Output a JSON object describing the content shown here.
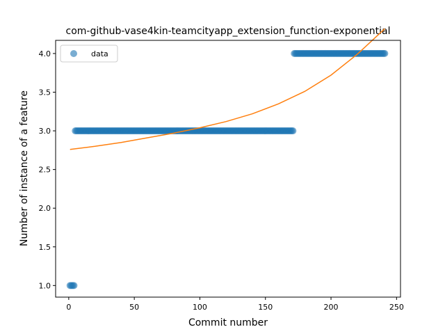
{
  "chart_data": {
    "type": "scatter",
    "title": "com-github-vase4kin-teamcityapp_extension_function-exponential",
    "xlabel": "Commit number",
    "ylabel": "Number of instance of a feature",
    "xlim": [
      -10,
      253
    ],
    "ylim": [
      0.85,
      4.17
    ],
    "xticks": [
      0,
      50,
      100,
      150,
      200,
      250
    ],
    "xtick_labels": [
      "0",
      "50",
      "100",
      "150",
      "200",
      "250"
    ],
    "yticks": [
      1.0,
      1.5,
      2.0,
      2.5,
      3.0,
      3.5,
      4.0
    ],
    "ytick_labels": [
      "1.0",
      "1.5",
      "2.0",
      "2.5",
      "3.0",
      "3.5",
      "4.0"
    ],
    "legend": {
      "entries": [
        "data"
      ],
      "placement": "top-left"
    },
    "grid": false,
    "colors": {
      "data": "#1f77b4",
      "fit": "#ff7f0e"
    },
    "series": [
      {
        "name": "data",
        "kind": "scatter",
        "segments": [
          {
            "x_start": 1,
            "x_end": 4,
            "y": 1
          },
          {
            "x_start": 5,
            "x_end": 171,
            "y": 3
          },
          {
            "x_start": 172,
            "x_end": 241,
            "y": 4
          }
        ]
      },
      {
        "kind": "line",
        "x": [
          1,
          20,
          40,
          60,
          80,
          100,
          120,
          140,
          160,
          180,
          200,
          220,
          241
        ],
        "y": [
          2.76,
          2.8,
          2.85,
          2.91,
          2.97,
          3.04,
          3.12,
          3.22,
          3.35,
          3.51,
          3.72,
          3.99,
          4.32
        ]
      }
    ]
  }
}
